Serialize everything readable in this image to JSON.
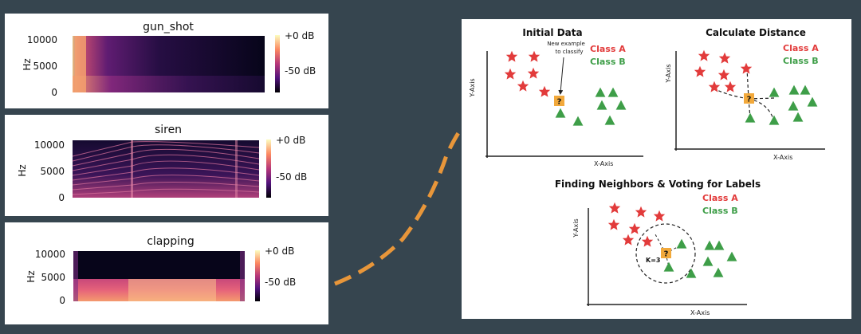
{
  "spectrograms": [
    {
      "title": "gun_shot",
      "ylabel": "Hz",
      "yticks": [
        "10000",
        "5000",
        "0"
      ],
      "colorbar_ticks": [
        "+0 dB",
        "-50 dB"
      ]
    },
    {
      "title": "siren",
      "ylabel": "Hz",
      "yticks": [
        "10000",
        "5000",
        "0"
      ],
      "colorbar_ticks": [
        "+0 dB",
        "-50 dB"
      ]
    },
    {
      "title": "clapping",
      "ylabel": "Hz",
      "yticks": [
        "10000",
        "5000",
        "0"
      ],
      "colorbar_ticks": [
        "+0 dB",
        "-50 dB"
      ]
    }
  ],
  "knn": {
    "initial": {
      "title": "Initial Data",
      "annotation_line1": "New example",
      "annotation_line2": "to classify",
      "class_a": "Class A",
      "class_b": "Class B",
      "x_axis": "X-Axis",
      "y_axis": "Y-Axis"
    },
    "distance": {
      "title": "Calculate Distance",
      "class_a": "Class A",
      "class_b": "Class B",
      "x_axis": "X-Axis",
      "y_axis": "Y-Axis"
    },
    "neighbors": {
      "title": "Finding Neighbors & Voting for Labels",
      "class_a": "Class A",
      "class_b": "Class B",
      "k_label": "K=3",
      "x_axis": "X-Axis",
      "y_axis": "Y-Axis"
    },
    "query_mark": "?"
  },
  "colors": {
    "background": "#36454f",
    "class_a": "#e23b3b",
    "class_b": "#3e9e48",
    "query": "#f2a93b",
    "arrow": "#e8963a"
  }
}
